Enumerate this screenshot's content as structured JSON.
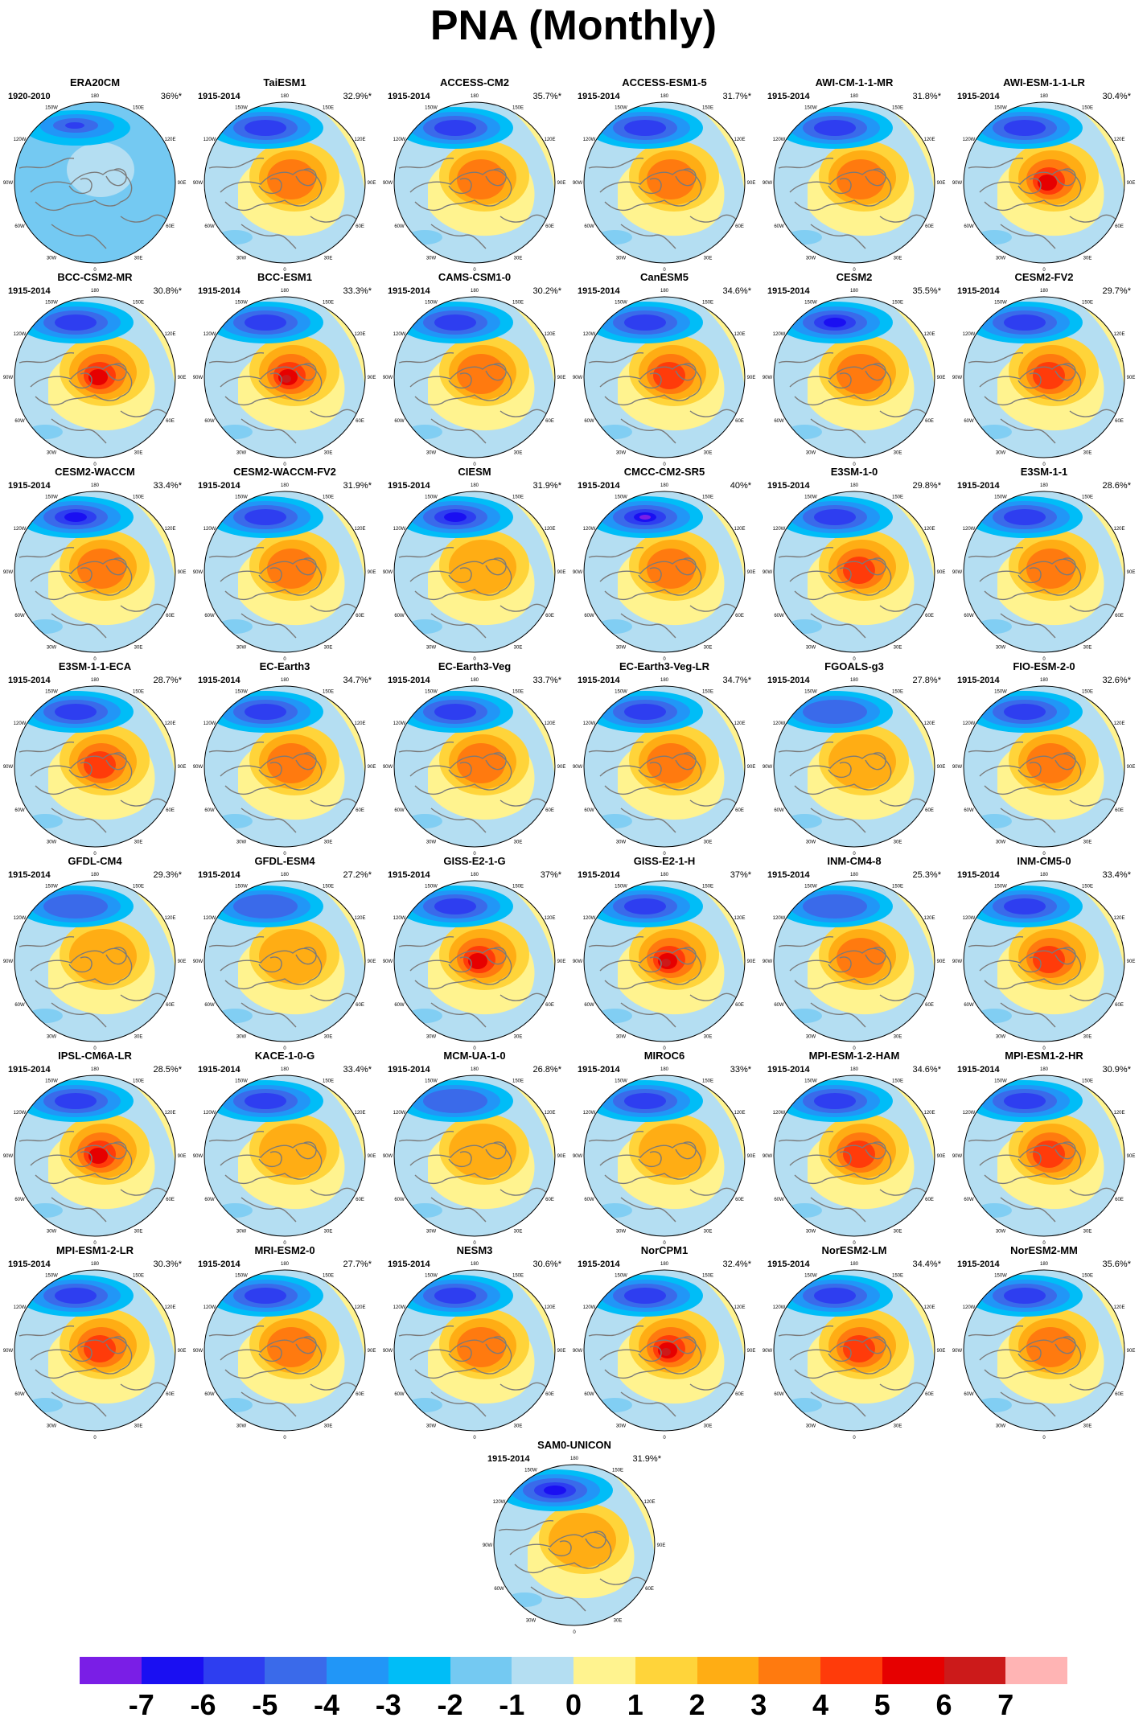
{
  "title": "PNA (Monthly)",
  "panels": [
    {
      "name": "ERA20CM",
      "period": "1920-2010",
      "pct": "36%*"
    },
    {
      "name": "TaiESM1",
      "period": "1915-2014",
      "pct": "32.9%*"
    },
    {
      "name": "ACCESS-CM2",
      "period": "1915-2014",
      "pct": "35.7%*"
    },
    {
      "name": "ACCESS-ESM1-5",
      "period": "1915-2014",
      "pct": "31.7%*"
    },
    {
      "name": "AWI-CM-1-1-MR",
      "period": "1915-2014",
      "pct": "31.8%*"
    },
    {
      "name": "AWI-ESM-1-1-LR",
      "period": "1915-2014",
      "pct": "30.4%*"
    },
    {
      "name": "BCC-CSM2-MR",
      "period": "1915-2014",
      "pct": "30.8%*"
    },
    {
      "name": "BCC-ESM1",
      "period": "1915-2014",
      "pct": "33.3%*"
    },
    {
      "name": "CAMS-CSM1-0",
      "period": "1915-2014",
      "pct": "30.2%*"
    },
    {
      "name": "CanESM5",
      "period": "1915-2014",
      "pct": "34.6%*"
    },
    {
      "name": "CESM2",
      "period": "1915-2014",
      "pct": "35.5%*"
    },
    {
      "name": "CESM2-FV2",
      "period": "1915-2014",
      "pct": "29.7%*"
    },
    {
      "name": "CESM2-WACCM",
      "period": "1915-2014",
      "pct": "33.4%*"
    },
    {
      "name": "CESM2-WACCM-FV2",
      "period": "1915-2014",
      "pct": "31.9%*"
    },
    {
      "name": "CIESM",
      "period": "1915-2014",
      "pct": "31.9%*"
    },
    {
      "name": "CMCC-CM2-SR5",
      "period": "1915-2014",
      "pct": "40%*"
    },
    {
      "name": "E3SM-1-0",
      "period": "1915-2014",
      "pct": "29.8%*"
    },
    {
      "name": "E3SM-1-1",
      "period": "1915-2014",
      "pct": "28.6%*"
    },
    {
      "name": "E3SM-1-1-ECA",
      "period": "1915-2014",
      "pct": "28.7%*"
    },
    {
      "name": "EC-Earth3",
      "period": "1915-2014",
      "pct": "34.7%*"
    },
    {
      "name": "EC-Earth3-Veg",
      "period": "1915-2014",
      "pct": "33.7%*"
    },
    {
      "name": "EC-Earth3-Veg-LR",
      "period": "1915-2014",
      "pct": "34.7%*"
    },
    {
      "name": "FGOALS-g3",
      "period": "1915-2014",
      "pct": "27.8%*"
    },
    {
      "name": "FIO-ESM-2-0",
      "period": "1915-2014",
      "pct": "32.6%*"
    },
    {
      "name": "GFDL-CM4",
      "period": "1915-2014",
      "pct": "29.3%*"
    },
    {
      "name": "GFDL-ESM4",
      "period": "1915-2014",
      "pct": "27.2%*"
    },
    {
      "name": "GISS-E2-1-G",
      "period": "1915-2014",
      "pct": "37%*"
    },
    {
      "name": "GISS-E2-1-H",
      "period": "1915-2014",
      "pct": "37%*"
    },
    {
      "name": "INM-CM4-8",
      "period": "1915-2014",
      "pct": "25.3%*"
    },
    {
      "name": "INM-CM5-0",
      "period": "1915-2014",
      "pct": "33.4%*"
    },
    {
      "name": "IPSL-CM6A-LR",
      "period": "1915-2014",
      "pct": "28.5%*"
    },
    {
      "name": "KACE-1-0-G",
      "period": "1915-2014",
      "pct": "33.4%*"
    },
    {
      "name": "MCM-UA-1-0",
      "period": "1915-2014",
      "pct": "26.8%*"
    },
    {
      "name": "MIROC6",
      "period": "1915-2014",
      "pct": "33%*"
    },
    {
      "name": "MPI-ESM-1-2-HAM",
      "period": "1915-2014",
      "pct": "34.6%*"
    },
    {
      "name": "MPI-ESM1-2-HR",
      "period": "1915-2014",
      "pct": "30.9%*"
    },
    {
      "name": "MPI-ESM1-2-LR",
      "period": "1915-2014",
      "pct": "30.3%*"
    },
    {
      "name": "MRI-ESM2-0",
      "period": "1915-2014",
      "pct": "27.7%*"
    },
    {
      "name": "NESM3",
      "period": "1915-2014",
      "pct": "30.6%*"
    },
    {
      "name": "NorCPM1",
      "period": "1915-2014",
      "pct": "32.4%*"
    },
    {
      "name": "NorESM2-LM",
      "period": "1915-2014",
      "pct": "34.4%*"
    },
    {
      "name": "NorESM2-MM",
      "period": "1915-2014",
      "pct": "35.6%*"
    },
    {
      "name": "SAM0-UNICON",
      "period": "1915-2014",
      "pct": "31.9%*"
    }
  ],
  "map_longitude_labels": [
    "180",
    "150E",
    "120E",
    "90E",
    "60E",
    "30E",
    "0",
    "30W",
    "60W",
    "90W",
    "120W",
    "150W"
  ],
  "colorbar": {
    "labels": [
      "-7",
      "-6",
      "-5",
      "-4",
      "-3",
      "-2",
      "-1",
      "0",
      "1",
      "2",
      "3",
      "4",
      "5",
      "6",
      "7"
    ],
    "colors": [
      "#7a1ee6",
      "#1a0ff2",
      "#2e3ef0",
      "#3a6aea",
      "#2196f7",
      "#00bdf7",
      "#74c9f2",
      "#b4def2",
      "#fff38f",
      "#ffd43a",
      "#ffad14",
      "#ff7a0f",
      "#ff3b0a",
      "#e60000",
      "#cc1a1a",
      "#ffb4b4"
    ]
  }
}
